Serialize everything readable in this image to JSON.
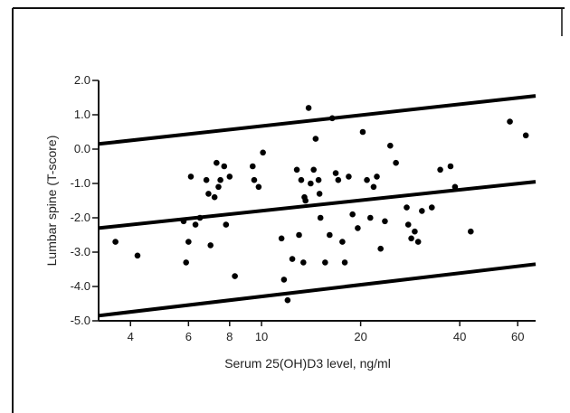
{
  "chart_data": {
    "type": "scatter",
    "xscale": "log",
    "xlabel": "Serum 25(OH)D3 level, ng/ml",
    "ylabel": "Lumbar spine (T-score)",
    "xlim": [
      3.2,
      68
    ],
    "ylim": [
      -5.0,
      2.0
    ],
    "xticks": [
      4,
      6,
      8,
      10,
      20,
      40,
      60
    ],
    "xtick_labels": [
      "4",
      "6",
      "8",
      "10",
      "20",
      "40",
      "60"
    ],
    "yticks": [
      2.0,
      1.0,
      0.0,
      -1.0,
      -2.0,
      -3.0,
      -4.0,
      -5.0
    ],
    "ytick_labels": [
      "2.0",
      "1.0",
      "0.0",
      "-1.0",
      "-2.0",
      "-3.0",
      "-4.0",
      "-5.0"
    ],
    "grid": false,
    "lines": [
      {
        "x": [
          3.2,
          68
        ],
        "y": [
          0.15,
          1.55
        ]
      },
      {
        "x": [
          3.2,
          68
        ],
        "y": [
          -2.3,
          -0.95
        ]
      },
      {
        "x": [
          3.2,
          68
        ],
        "y": [
          -4.85,
          -3.35
        ]
      }
    ],
    "points": {
      "x": [
        3.6,
        4.2,
        5.8,
        5.9,
        6.0,
        6.1,
        6.3,
        6.5,
        6.8,
        6.9,
        7.0,
        7.2,
        7.3,
        7.4,
        7.5,
        7.7,
        7.8,
        8.0,
        8.3,
        9.4,
        9.5,
        9.8,
        10.1,
        11.5,
        11.7,
        12.0,
        12.4,
        12.8,
        13.0,
        13.2,
        13.4,
        13.6,
        13.9,
        14.1,
        14.4,
        14.6,
        14.9,
        15.1,
        15.6,
        16.1,
        16.4,
        16.8,
        17.1,
        17.6,
        17.9,
        18.4,
        18.9,
        19.6,
        20.3,
        20.9,
        21.4,
        21.9,
        22.4,
        23.0,
        23.7,
        24.6,
        25.6,
        27.6,
        27.9,
        28.5,
        29.2,
        29.9,
        30.7,
        32.9,
        34.9,
        37.5,
        38.7,
        43.2,
        56.8,
        63.5,
        13.5,
        15.0
      ],
      "y": [
        -2.7,
        -3.1,
        -2.1,
        -3.3,
        -2.7,
        -0.8,
        -2.2,
        -2.0,
        -0.9,
        -1.3,
        -2.8,
        -1.4,
        -0.4,
        -1.1,
        -0.9,
        -0.5,
        -2.2,
        -0.8,
        -3.7,
        -0.5,
        -0.9,
        -1.1,
        -0.1,
        -2.6,
        -3.8,
        -4.4,
        -3.2,
        -0.6,
        -2.5,
        -0.9,
        -3.3,
        -1.5,
        1.2,
        -1.0,
        -0.6,
        0.3,
        -0.9,
        -2.0,
        -3.3,
        -2.5,
        0.9,
        -0.7,
        -0.9,
        -2.7,
        -3.3,
        -0.8,
        -1.9,
        -2.3,
        0.5,
        -0.9,
        -2.0,
        -1.1,
        -0.8,
        -2.9,
        -2.1,
        0.1,
        -0.4,
        -1.7,
        -2.2,
        -2.6,
        -2.4,
        -2.7,
        -1.8,
        -1.7,
        -0.6,
        -0.5,
        -1.1,
        -2.4,
        0.8,
        0.4,
        -1.4,
        -1.3
      ]
    }
  }
}
